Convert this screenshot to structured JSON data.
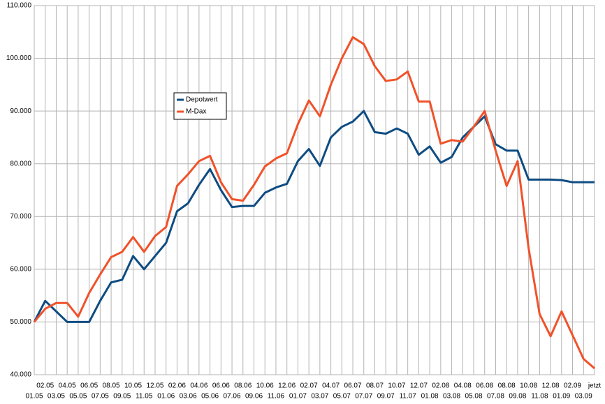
{
  "chart_data": {
    "type": "line",
    "categories": [
      "01.05",
      "02.05",
      "03.05",
      "04.05",
      "05.05",
      "06.05",
      "07.05",
      "08.05",
      "09.05",
      "10.05",
      "11.05",
      "12.05",
      "01.06",
      "02.06",
      "03.06",
      "04.06",
      "05.06",
      "06.06",
      "07.06",
      "08.06",
      "09.06",
      "10.06",
      "11.06",
      "12.06",
      "01.07",
      "02.07",
      "03.07",
      "04.07",
      "05.07",
      "06.07",
      "07.07",
      "08.07",
      "09.07",
      "10.07",
      "11.07",
      "12.07",
      "01.08",
      "02.08",
      "03.08",
      "04.08",
      "05.08",
      "06.08",
      "07.08",
      "08.08",
      "09.08",
      "10.08",
      "11.08",
      "12.08",
      "01.09",
      "02.09",
      "03.09",
      "jetzt"
    ],
    "series": [
      {
        "name": "Depotwert",
        "color": "#0e4c82",
        "values": [
          50000,
          54000,
          52000,
          50000,
          50000,
          50000,
          54000,
          57500,
          58000,
          62500,
          60000,
          62500,
          65000,
          71000,
          72500,
          76000,
          79000,
          75000,
          71800,
          72000,
          72000,
          74500,
          75500,
          76200,
          80500,
          82800,
          79600,
          85000,
          87000,
          88000,
          90000,
          86000,
          85700,
          86700,
          85700,
          81700,
          83300,
          80200,
          81300,
          85000,
          87000,
          89000,
          83700,
          82500,
          82500,
          77000,
          77000,
          77000,
          76900,
          76500,
          76500,
          76500
        ]
      },
      {
        "name": "M-Dax",
        "color": "#f0522a",
        "values": [
          50000,
          52500,
          53600,
          53600,
          51000,
          55500,
          59000,
          62300,
          63300,
          66100,
          63300,
          66300,
          68000,
          75800,
          78000,
          80500,
          81500,
          76500,
          73300,
          73000,
          76000,
          79500,
          81000,
          82000,
          87500,
          92000,
          89000,
          95000,
          100000,
          104000,
          102700,
          98500,
          95700,
          96000,
          97500,
          91800,
          91800,
          83800,
          84500,
          84200,
          87000,
          90000,
          82500,
          75800,
          80500,
          64000,
          51500,
          47300,
          52000,
          47500,
          43000,
          41200
        ]
      }
    ],
    "ylim": [
      40000,
      110000
    ],
    "yticks": [
      {
        "value": 40000,
        "label": "40.000"
      },
      {
        "value": 50000,
        "label": "50.000"
      },
      {
        "value": 60000,
        "label": "60.000"
      },
      {
        "value": 70000,
        "label": "70.000"
      },
      {
        "value": 80000,
        "label": "80.000"
      },
      {
        "value": 90000,
        "label": "90.000"
      },
      {
        "value": 100000,
        "label": "100.000"
      },
      {
        "value": 110000,
        "label": "110.000"
      }
    ],
    "grid": true
  }
}
